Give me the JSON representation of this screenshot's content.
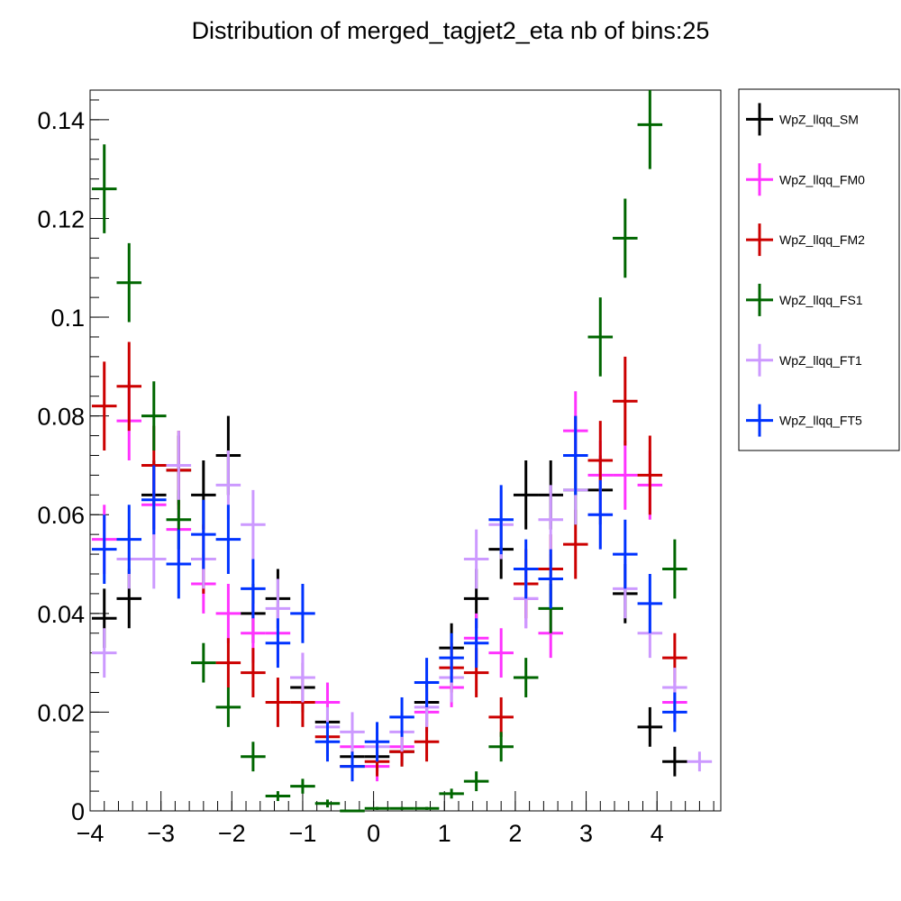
{
  "chart_data": {
    "type": "scatter",
    "title": "Distribution of merged_tagjet2_eta nb of bins:25",
    "xlabel": "",
    "ylabel": "",
    "xlim": [
      -4.0,
      4.9
    ],
    "ylim": [
      0,
      0.146
    ],
    "x_ticks": [
      -4,
      -3,
      -2,
      -1,
      0,
      1,
      2,
      3,
      4
    ],
    "x_tick_labels": [
      "−4",
      "−3",
      "−2",
      "−1",
      "0",
      "1",
      "2",
      "3",
      "4"
    ],
    "y_ticks": [
      0,
      0.02,
      0.04,
      0.06,
      0.08,
      0.1,
      0.12,
      0.14
    ],
    "y_tick_labels": [
      "0",
      "0.02",
      "0.04",
      "0.06",
      "0.08",
      "0.1",
      "0.12",
      "0.14"
    ],
    "bin_width": 0.35,
    "x": [
      -3.8,
      -3.45,
      -3.1,
      -2.75,
      -2.4,
      -2.05,
      -1.7,
      -1.35,
      -1.0,
      -0.65,
      -0.3,
      0.05,
      0.4,
      0.75,
      1.1,
      1.45,
      1.8,
      2.15,
      2.5,
      2.85,
      3.2,
      3.55,
      3.9,
      4.25,
      4.6
    ],
    "legend_position": "top-right",
    "series": [
      {
        "name": "WpZ_llqq_SM",
        "color": "#000000",
        "values": [
          0.039,
          0.043,
          0.064,
          0.069,
          0.064,
          0.072,
          0.04,
          0.043,
          0.025,
          0.018,
          0.011,
          0.011,
          0.012,
          0.022,
          0.033,
          0.043,
          0.053,
          0.064,
          0.064,
          0.072,
          0.065,
          0.044,
          0.017,
          0.01,
          null
        ],
        "errors": [
          0.006,
          0.006,
          0.007,
          0.007,
          0.007,
          0.008,
          0.006,
          0.006,
          0.005,
          0.004,
          0.003,
          0.003,
          0.003,
          0.004,
          0.005,
          0.006,
          0.006,
          0.007,
          0.007,
          0.008,
          0.007,
          0.006,
          0.004,
          0.003,
          null
        ]
      },
      {
        "name": "WpZ_llqq_FM0",
        "color": "#ff33ff",
        "values": [
          0.055,
          0.079,
          0.062,
          0.057,
          0.046,
          0.04,
          0.036,
          0.036,
          0.027,
          0.022,
          0.013,
          0.009,
          0.013,
          0.02,
          0.025,
          0.035,
          0.032,
          0.043,
          0.036,
          0.077,
          0.068,
          0.068,
          0.066,
          0.022,
          null
        ],
        "errors": [
          0.007,
          0.008,
          0.007,
          0.007,
          0.006,
          0.006,
          0.006,
          0.006,
          0.005,
          0.004,
          0.003,
          0.003,
          0.003,
          0.004,
          0.004,
          0.005,
          0.005,
          0.006,
          0.005,
          0.008,
          0.007,
          0.007,
          0.007,
          0.004,
          null
        ]
      },
      {
        "name": "WpZ_llqq_FM2",
        "color": "#cc0000",
        "values": [
          0.082,
          0.086,
          0.07,
          0.069,
          0.051,
          0.03,
          0.028,
          0.022,
          0.022,
          0.015,
          0.009,
          0.01,
          0.012,
          0.014,
          0.029,
          0.028,
          0.019,
          0.046,
          0.049,
          0.054,
          0.071,
          0.083,
          0.068,
          0.031,
          null
        ],
        "errors": [
          0.009,
          0.009,
          0.008,
          0.008,
          0.007,
          0.005,
          0.005,
          0.005,
          0.005,
          0.004,
          0.003,
          0.003,
          0.003,
          0.004,
          0.005,
          0.005,
          0.004,
          0.007,
          0.007,
          0.007,
          0.008,
          0.009,
          0.008,
          0.005,
          null
        ]
      },
      {
        "name": "WpZ_llqq_FS1",
        "color": "#006600",
        "values": [
          0.126,
          0.107,
          0.08,
          0.059,
          0.03,
          0.021,
          0.011,
          0.003,
          0.005,
          0.0015,
          0.0,
          0.0005,
          0.0005,
          0.0005,
          0.0035,
          0.006,
          0.013,
          0.027,
          0.041,
          0.065,
          0.096,
          0.116,
          0.139,
          0.049,
          null
        ],
        "errors": [
          0.009,
          0.008,
          0.007,
          0.006,
          0.004,
          0.004,
          0.003,
          0.001,
          0.0015,
          0.0008,
          0.0,
          0.0003,
          0.0003,
          0.0003,
          0.001,
          0.002,
          0.003,
          0.004,
          0.005,
          0.007,
          0.008,
          0.008,
          0.009,
          0.006,
          null
        ]
      },
      {
        "name": "WpZ_llqq_FT1",
        "color": "#cc99ff",
        "values": [
          0.032,
          0.051,
          0.051,
          0.07,
          0.051,
          0.066,
          0.058,
          0.041,
          0.027,
          0.017,
          0.016,
          0.013,
          0.016,
          0.021,
          0.027,
          0.051,
          0.058,
          0.043,
          0.059,
          0.065,
          0.06,
          0.045,
          0.036,
          0.025,
          0.01
        ],
        "errors": [
          0.005,
          0.006,
          0.006,
          0.007,
          0.006,
          0.007,
          0.007,
          0.006,
          0.005,
          0.004,
          0.004,
          0.003,
          0.004,
          0.004,
          0.005,
          0.006,
          0.007,
          0.006,
          0.007,
          0.007,
          0.007,
          0.006,
          0.005,
          0.004,
          0.002
        ]
      },
      {
        "name": "WpZ_llqq_FT5",
        "color": "#0033ff",
        "values": [
          0.053,
          0.055,
          0.063,
          0.05,
          0.056,
          0.055,
          0.045,
          0.034,
          0.04,
          0.014,
          0.009,
          0.014,
          0.019,
          0.026,
          0.031,
          0.034,
          0.059,
          0.049,
          0.047,
          0.072,
          0.06,
          0.052,
          0.042,
          0.02,
          null
        ],
        "errors": [
          0.007,
          0.007,
          0.007,
          0.007,
          0.007,
          0.007,
          0.006,
          0.005,
          0.006,
          0.004,
          0.003,
          0.004,
          0.004,
          0.005,
          0.005,
          0.005,
          0.007,
          0.006,
          0.006,
          0.008,
          0.007,
          0.007,
          0.006,
          0.004,
          null
        ]
      }
    ]
  }
}
